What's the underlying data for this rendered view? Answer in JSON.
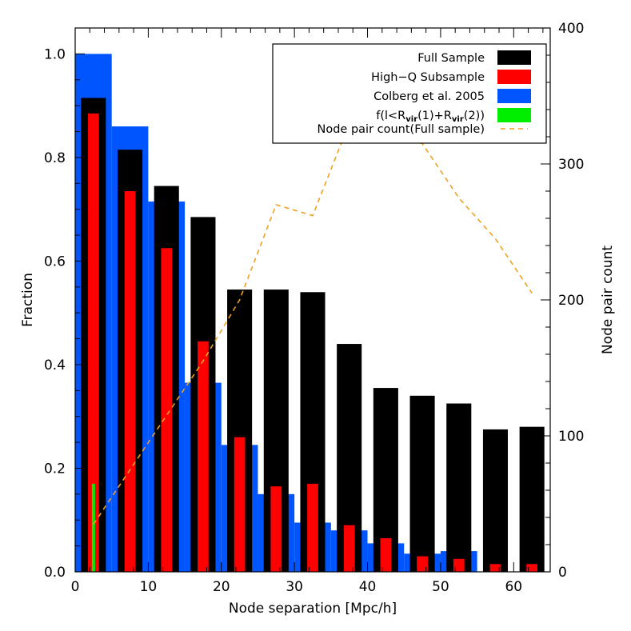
{
  "chart_data": {
    "type": "bar",
    "xlabel": "Node separation [Mpc/h]",
    "ylabel": "Fraction",
    "y2label": "Node pair count",
    "xlim": [
      0,
      65
    ],
    "ylim": [
      0,
      1.05
    ],
    "y2lim": [
      0,
      400
    ],
    "xticks": [
      "0",
      "10",
      "20",
      "30",
      "40",
      "50",
      "60"
    ],
    "yticks": [
      "0.0",
      "0.2",
      "0.4",
      "0.6",
      "0.8",
      "1.0"
    ],
    "y2ticks": [
      "0",
      "100",
      "200",
      "300",
      "400"
    ],
    "legend_position": "top-right",
    "legend": [
      {
        "label": "Full Sample",
        "color": "#000000",
        "style": "box"
      },
      {
        "label": "High−Q Subsample",
        "color": "#ff0000",
        "style": "box"
      },
      {
        "label": "Colberg et al. 2005",
        "color": "#0055ff",
        "style": "box"
      },
      {
        "label_parts": [
          "f(l<R",
          "vir",
          "(1)+R",
          "vir",
          "(2))"
        ],
        "color": "#00ee00",
        "style": "box"
      },
      {
        "label": "Node pair count(Full sample)",
        "color": "#f0a020",
        "style": "dash"
      }
    ],
    "series": [
      {
        "name": "Colberg et al. 2005",
        "color": "#0055ff",
        "x0": [
          0,
          5,
          10,
          15,
          20,
          25,
          30,
          35,
          40,
          45,
          50
        ],
        "x1": [
          5,
          10,
          15,
          20,
          25,
          30,
          35,
          40,
          45,
          50,
          55
        ],
        "values": [
          1.0,
          0.86,
          0.715,
          0.365,
          0.245,
          0.15,
          0.095,
          0.08,
          0.055,
          0.035,
          0.04
        ]
      },
      {
        "name": "Full Sample",
        "color": "#000000",
        "x": [
          2.5,
          7.5,
          12.5,
          17.5,
          22.5,
          27.5,
          32.5,
          37.5,
          42.5,
          47.5,
          52.5,
          57.5,
          62.5
        ],
        "values": [
          0.915,
          0.815,
          0.745,
          0.685,
          0.545,
          0.545,
          0.54,
          0.44,
          0.355,
          0.34,
          0.325,
          0.275,
          0.28
        ]
      },
      {
        "name": "High−Q Subsample",
        "color": "#ff0000",
        "x": [
          2.5,
          7.5,
          12.5,
          17.5,
          22.5,
          27.5,
          32.5,
          37.5,
          42.5,
          47.5,
          52.5,
          57.5,
          62.5
        ],
        "values": [
          0.885,
          0.735,
          0.625,
          0.445,
          0.26,
          0.165,
          0.17,
          0.09,
          0.065,
          0.03,
          0.025,
          0.015,
          0.015
        ]
      },
      {
        "name": "f(l<Rvir(1)+Rvir(2))",
        "color": "#00ee00",
        "x": [
          2.5
        ],
        "values": [
          0.17
        ]
      },
      {
        "name": "Node pair count(Full sample)",
        "color": "#f0a020",
        "axis": "right",
        "x": [
          2.5,
          7.5,
          12.5,
          17.5,
          22.5,
          27.5,
          32.5,
          37.5,
          42.5,
          47.5,
          52.5,
          57.5,
          62.5
        ],
        "values": [
          35,
          75,
          115,
          155,
          200,
          270,
          262,
          330,
          320,
          315,
          275,
          245,
          205
        ]
      }
    ]
  }
}
